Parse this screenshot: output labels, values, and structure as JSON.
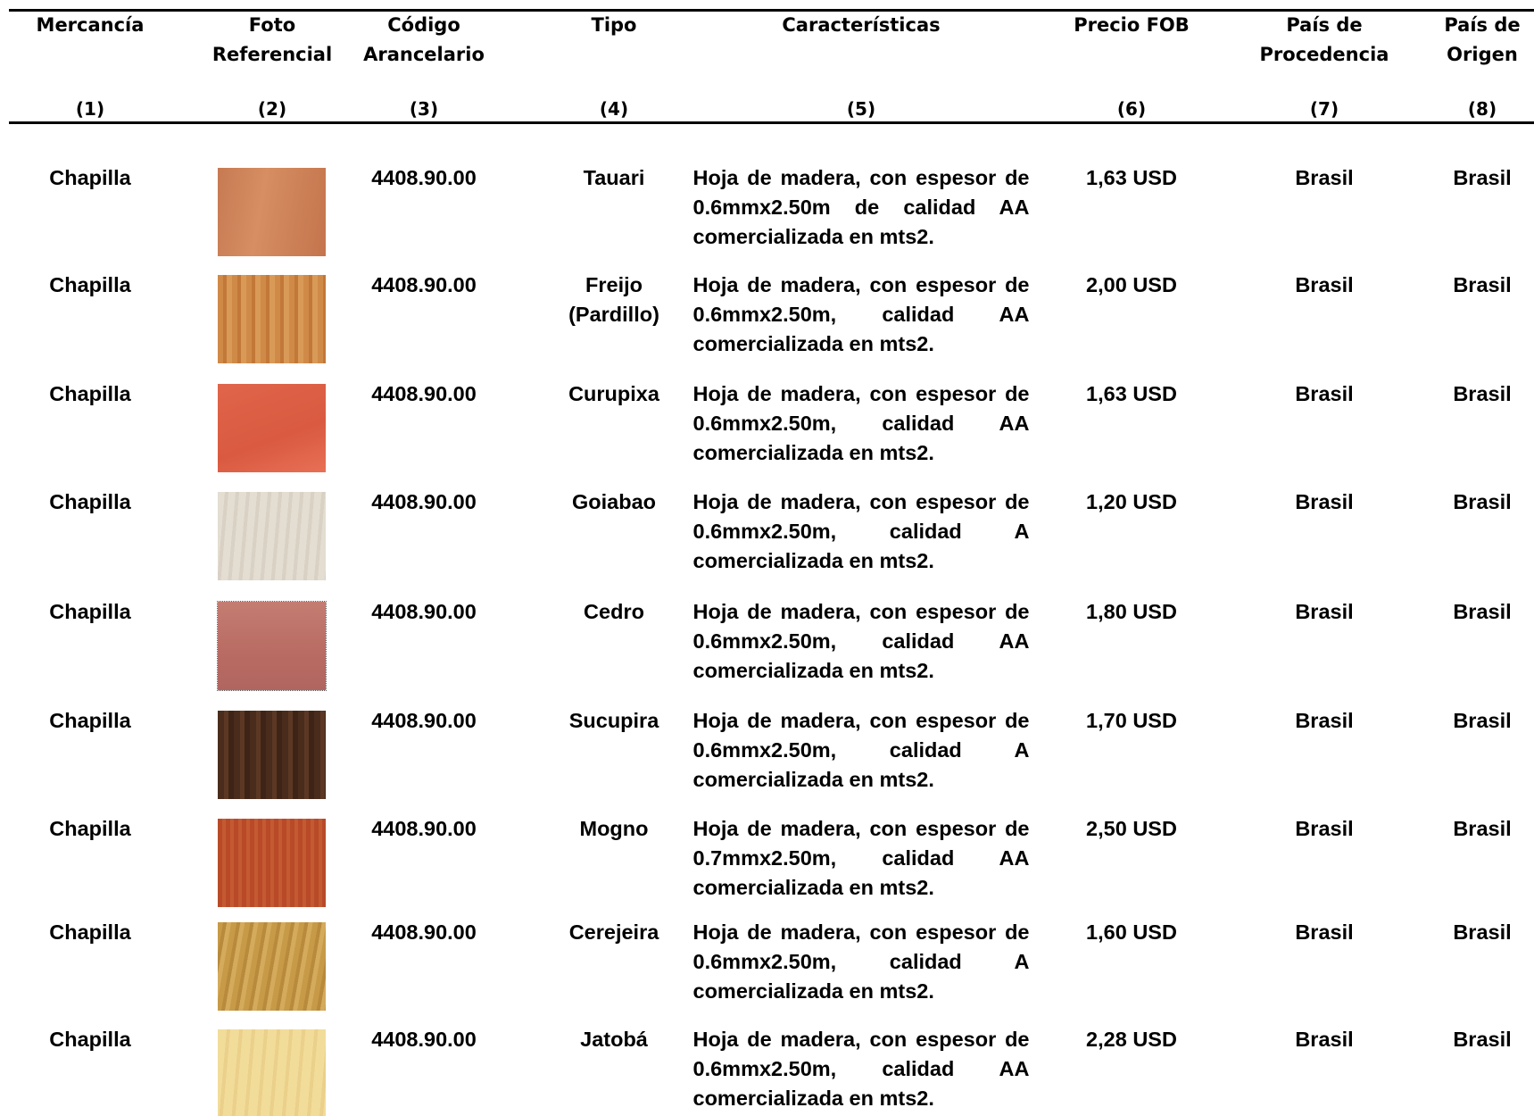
{
  "table": {
    "headers": [
      {
        "title": [
          "Mercancía"
        ],
        "number": "(1)"
      },
      {
        "title": [
          "Foto",
          "Referencial"
        ],
        "number": "(2)"
      },
      {
        "title": [
          "Código",
          "Arancelario"
        ],
        "number": "(3)"
      },
      {
        "title": [
          "Tipo"
        ],
        "number": "(4)"
      },
      {
        "title": [
          "Características"
        ],
        "number": "(5)"
      },
      {
        "title": [
          "Precio FOB"
        ],
        "number": "(6)"
      },
      {
        "title": [
          "País de",
          "Procedencia"
        ],
        "number": "(7)"
      },
      {
        "title": [
          "País de",
          "Origen"
        ],
        "number": "(8)"
      }
    ],
    "rows": [
      {
        "mercancia": "Chapilla",
        "codigo": "4408.90.00",
        "tipo": "Tauari",
        "caracteristicas": "Hoja de madera, con espesor de 0.6mmx2.50m de calidad AA comercializada en mts2.",
        "precio": "1,63 USD",
        "procedencia": "Brasil",
        "origen": "Brasil"
      },
      {
        "mercancia": "Chapilla",
        "codigo": "4408.90.00",
        "tipo": "Freijo (Pardillo)",
        "caracteristicas": "Hoja de madera, con espesor de 0.6mmx2.50m, calidad AA comercializada en mts2.",
        "precio": "2,00 USD",
        "procedencia": "Brasil",
        "origen": "Brasil"
      },
      {
        "mercancia": "Chapilla",
        "codigo": "4408.90.00",
        "tipo": "Curupixa",
        "caracteristicas": "Hoja de madera, con espesor de 0.6mmx2.50m, calidad AA comercializada en mts2.",
        "precio": "1,63 USD",
        "procedencia": "Brasil",
        "origen": "Brasil"
      },
      {
        "mercancia": "Chapilla",
        "codigo": "4408.90.00",
        "tipo": "Goiabao",
        "caracteristicas": "Hoja de madera, con espesor de 0.6mmx2.50m, calidad A comercializada en mts2.",
        "precio": "1,20 USD",
        "procedencia": "Brasil",
        "origen": "Brasil"
      },
      {
        "mercancia": "Chapilla",
        "codigo": "4408.90.00",
        "tipo": "Cedro",
        "caracteristicas": "Hoja de madera, con espesor de 0.6mmx2.50m, calidad AA comercializada en mts2.",
        "precio": "1,80 USD",
        "procedencia": "Brasil",
        "origen": "Brasil"
      },
      {
        "mercancia": "Chapilla",
        "codigo": "4408.90.00",
        "tipo": "Sucupira",
        "caracteristicas": "Hoja de madera, con espesor de 0.6mmx2.50m, calidad A comercializada en mts2.",
        "precio": "1,70 USD",
        "procedencia": "Brasil",
        "origen": "Brasil"
      },
      {
        "mercancia": "Chapilla",
        "codigo": "4408.90.00",
        "tipo": "Mogno",
        "caracteristicas": "Hoja de madera, con espesor de 0.7mmx2.50m, calidad AA comercializada en mts2.",
        "precio": "2,50 USD",
        "procedencia": "Brasil",
        "origen": "Brasil"
      },
      {
        "mercancia": "Chapilla",
        "codigo": "4408.90.00",
        "tipo": "Cerejeira",
        "caracteristicas": "Hoja de madera, con espesor de 0.6mmx2.50m, calidad A comercializada en mts2.",
        "precio": "1,60 USD",
        "procedencia": "Brasil",
        "origen": "Brasil"
      },
      {
        "mercancia": "Chapilla",
        "codigo": "4408.90.00",
        "tipo": "Jatobá",
        "caracteristicas": "Hoja de madera, con espesor de 0.6mmx2.50m, calidad AA comercializada en mts2.",
        "precio": "2,28 USD",
        "procedencia": "Brasil",
        "origen": "Brasil"
      }
    ]
  }
}
